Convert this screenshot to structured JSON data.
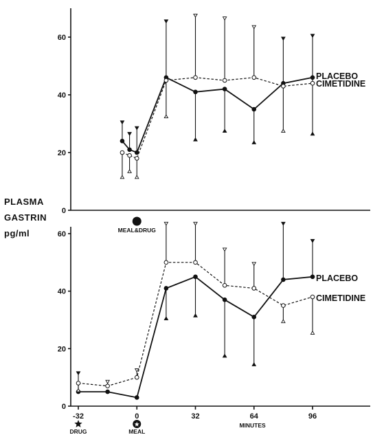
{
  "y_axis_label": {
    "line1": "PLASMA",
    "line2": "GASTRIN",
    "line3": "pg/ml"
  },
  "top_marker_label": "MEAL&DRUG",
  "bottom_x_axis_title": "MINUTES",
  "bottom_event_labels": {
    "drug": "DRUG",
    "meal": "MEAL"
  },
  "chart_data": [
    {
      "type": "line",
      "panel": "top",
      "xlim": [
        -44,
        102
      ],
      "ylim": [
        0,
        70
      ],
      "yticks": [
        0,
        20,
        40,
        60
      ],
      "xticks": [],
      "event_marker": {
        "x": 0,
        "label": "MEAL&DRUG"
      },
      "series": [
        {
          "name": "PLACEBO",
          "style": "solid-filled",
          "x": [
            -8,
            -4,
            0,
            8,
            16,
            24,
            32,
            40,
            48,
            56,
            64,
            72,
            80,
            88,
            96
          ],
          "x_note": "",
          "points": [
            {
              "x": -8,
              "y": 24,
              "err_hi": 31,
              "err_lo": null
            },
            {
              "x": -4,
              "y": 21,
              "err_hi": 27,
              "err_lo": null
            },
            {
              "x": 0,
              "y": 20,
              "err_hi": 29,
              "err_lo": null
            },
            {
              "x": 16,
              "y": 46,
              "err_hi": 66,
              "err_lo": null
            },
            {
              "x": 32,
              "y": 41,
              "err_hi": null,
              "err_lo": 24
            },
            {
              "x": 48,
              "y": 42,
              "err_hi": null,
              "err_lo": 27
            },
            {
              "x": 64,
              "y": 35,
              "err_hi": null,
              "err_lo": 23
            },
            {
              "x": 80,
              "y": 44,
              "err_hi": 60,
              "err_lo": null
            },
            {
              "x": 96,
              "y": 46,
              "err_hi": 61,
              "err_lo": 26
            }
          ]
        },
        {
          "name": "CIMETIDINE",
          "style": "dashed-open",
          "points": [
            {
              "x": -8,
              "y": 20,
              "err_hi": null,
              "err_lo": 11
            },
            {
              "x": -4,
              "y": 19,
              "err_hi": null,
              "err_lo": 13
            },
            {
              "x": 0,
              "y": 18,
              "err_hi": null,
              "err_lo": 11
            },
            {
              "x": 16,
              "y": 45,
              "err_hi": null,
              "err_lo": 32
            },
            {
              "x": 32,
              "y": 46,
              "err_hi": 68,
              "err_lo": null
            },
            {
              "x": 48,
              "y": 45,
              "err_hi": 67,
              "err_lo": null
            },
            {
              "x": 64,
              "y": 46,
              "err_hi": 64,
              "err_lo": null
            },
            {
              "x": 80,
              "y": 43,
              "err_hi": null,
              "err_lo": 27
            },
            {
              "x": 96,
              "y": 44,
              "err_hi": null,
              "err_lo": null
            }
          ]
        }
      ]
    },
    {
      "type": "line",
      "panel": "bottom",
      "xlim": [
        -44,
        102
      ],
      "ylim": [
        0,
        65
      ],
      "yticks": [
        0,
        20,
        40,
        60
      ],
      "xticks": [
        -32,
        0,
        32,
        64,
        96
      ],
      "xlabel": "MINUTES",
      "event_markers": [
        {
          "x": -32,
          "label": "DRUG"
        },
        {
          "x": 0,
          "label": "MEAL"
        }
      ],
      "series": [
        {
          "name": "PLACEBO",
          "style": "solid-filled",
          "points": [
            {
              "x": -32,
              "y": 5,
              "err_hi": 12,
              "err_lo": null
            },
            {
              "x": -16,
              "y": 5,
              "err_hi": null,
              "err_lo": null
            },
            {
              "x": 0,
              "y": 3,
              "err_hi": null,
              "err_lo": null
            },
            {
              "x": 16,
              "y": 41,
              "err_hi": null,
              "err_lo": 30
            },
            {
              "x": 32,
              "y": 45,
              "err_hi": null,
              "err_lo": 31
            },
            {
              "x": 48,
              "y": 37,
              "err_hi": null,
              "err_lo": 17
            },
            {
              "x": 64,
              "y": 31,
              "err_hi": null,
              "err_lo": 14
            },
            {
              "x": 80,
              "y": 44,
              "err_hi": 64,
              "err_lo": null
            },
            {
              "x": 96,
              "y": 45,
              "err_hi": 58,
              "err_lo": null
            }
          ]
        },
        {
          "name": "CIMETIDINE",
          "style": "dashed-open",
          "points": [
            {
              "x": -32,
              "y": 8,
              "err_hi": null,
              "err_lo": 5
            },
            {
              "x": -16,
              "y": 7,
              "err_hi": 9,
              "err_lo": null
            },
            {
              "x": 0,
              "y": 10,
              "err_hi": 13,
              "err_lo": null
            },
            {
              "x": 16,
              "y": 50,
              "err_hi": 64,
              "err_lo": null
            },
            {
              "x": 32,
              "y": 50,
              "err_hi": 64,
              "err_lo": null
            },
            {
              "x": 48,
              "y": 42,
              "err_hi": 55,
              "err_lo": null
            },
            {
              "x": 64,
              "y": 41,
              "err_hi": 50,
              "err_lo": null
            },
            {
              "x": 80,
              "y": 35,
              "err_hi": null,
              "err_lo": 29
            },
            {
              "x": 96,
              "y": 38,
              "err_hi": null,
              "err_lo": 25
            }
          ]
        }
      ]
    }
  ]
}
